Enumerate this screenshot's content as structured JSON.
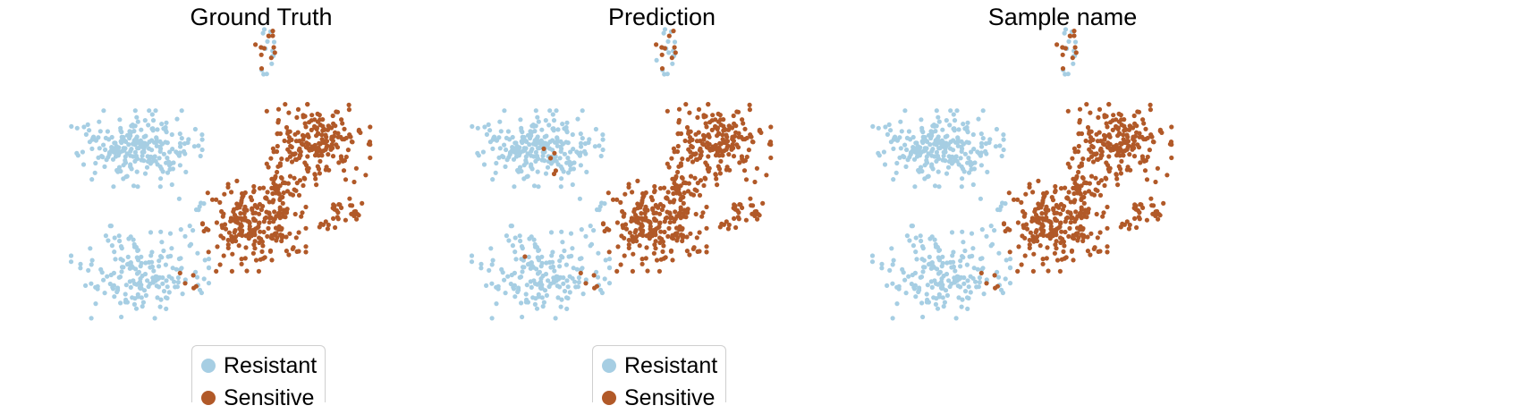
{
  "colors": {
    "Resistant": "#a6cee3",
    "Sensitive": "#b15928"
  },
  "legend": {
    "items": [
      {
        "label": "Resistant",
        "color": "#a6cee3"
      },
      {
        "label": "Sensitive",
        "color": "#b15928"
      }
    ]
  },
  "chart_data": [
    {
      "type": "scatter",
      "title": "Ground Truth",
      "xlabel": "",
      "ylabel": "",
      "axes_visible": false,
      "categories": [
        "Resistant",
        "Sensitive"
      ],
      "legend": {
        "shown": true,
        "placement": "bottom-center"
      },
      "series": [
        {
          "name": "Resistant",
          "color": "#a6cee3",
          "regions": [
            {
              "label": "upper-left cluster",
              "cx": -6.4,
              "cy": 5.2,
              "sx": 1.9,
              "sy": 1.4,
              "n": 240
            },
            {
              "label": "lower-left cluster",
              "cx": -6.2,
              "cy": -4.8,
              "sx": 2.0,
              "sy": 1.7,
              "n": 190
            },
            {
              "label": "top-small cluster",
              "cx": 1.9,
              "cy": 13.1,
              "sx": 0.45,
              "sy": 0.85,
              "n": 14
            },
            {
              "label": "bridge",
              "cx": -2.6,
              "cy": 0.8,
              "sx": 0.5,
              "sy": 0.25,
              "n": 6
            }
          ]
        },
        {
          "name": "Sensitive",
          "color": "#b15928",
          "regions": [
            {
              "label": "upper-right blob",
              "cx": 5.2,
              "cy": 5.5,
              "sx": 1.5,
              "sy": 1.5,
              "n": 200
            },
            {
              "label": "central blob",
              "cx": 1.1,
              "cy": -1.0,
              "sx": 1.5,
              "sy": 1.7,
              "n": 230
            },
            {
              "label": "diagonal link",
              "cx": 3.1,
              "cy": 2.3,
              "sx": 0.6,
              "sy": 1.2,
              "n": 40
            },
            {
              "label": "right satellite",
              "cx": 6.9,
              "cy": 0.2,
              "sx": 0.6,
              "sy": 0.5,
              "n": 25
            },
            {
              "label": "right small",
              "cx": 5.6,
              "cy": -1.0,
              "sx": 0.3,
              "sy": 0.25,
              "n": 7
            },
            {
              "label": "top-small cluster",
              "cx": 1.9,
              "cy": 13.1,
              "sx": 0.5,
              "sy": 0.9,
              "n": 12
            },
            {
              "label": "stray lower",
              "cx": -2.6,
              "cy": -5.5,
              "sx": 0.5,
              "sy": 0.5,
              "n": 5
            }
          ]
        }
      ]
    },
    {
      "type": "scatter",
      "title": "Prediction",
      "xlabel": "",
      "ylabel": "",
      "axes_visible": false,
      "categories": [
        "Resistant",
        "Sensitive"
      ],
      "legend": {
        "shown": true,
        "placement": "bottom-center"
      },
      "series": [
        {
          "name": "Resistant",
          "color": "#a6cee3",
          "regions": [
            {
              "label": "upper-left cluster",
              "cx": -6.4,
              "cy": 5.2,
              "sx": 1.9,
              "sy": 1.4,
              "n": 240
            },
            {
              "label": "lower-left cluster",
              "cx": -6.2,
              "cy": -4.8,
              "sx": 2.0,
              "sy": 1.7,
              "n": 190
            },
            {
              "label": "top-small cluster",
              "cx": 1.9,
              "cy": 13.1,
              "sx": 0.45,
              "sy": 0.85,
              "n": 16
            },
            {
              "label": "bridge",
              "cx": -2.6,
              "cy": 0.8,
              "sx": 0.5,
              "sy": 0.25,
              "n": 6
            }
          ]
        },
        {
          "name": "Sensitive",
          "color": "#b15928",
          "regions": [
            {
              "label": "upper-right blob",
              "cx": 5.2,
              "cy": 5.5,
              "sx": 1.5,
              "sy": 1.5,
              "n": 200
            },
            {
              "label": "central blob",
              "cx": 1.1,
              "cy": -1.0,
              "sx": 1.5,
              "sy": 1.7,
              "n": 230
            },
            {
              "label": "diagonal link",
              "cx": 3.1,
              "cy": 2.3,
              "sx": 0.6,
              "sy": 1.2,
              "n": 40
            },
            {
              "label": "right satellite",
              "cx": 6.9,
              "cy": 0.2,
              "sx": 0.6,
              "sy": 0.5,
              "n": 25
            },
            {
              "label": "right small",
              "cx": 5.6,
              "cy": -1.0,
              "sx": 0.3,
              "sy": 0.25,
              "n": 7
            },
            {
              "label": "top-small cluster",
              "cx": 1.9,
              "cy": 13.1,
              "sx": 0.5,
              "sy": 0.9,
              "n": 10
            },
            {
              "label": "stray lower",
              "cx": -2.6,
              "cy": -5.5,
              "sx": 0.5,
              "sy": 0.5,
              "n": 5
            },
            {
              "label": "misclassified upper-left",
              "cx": -5.6,
              "cy": 4.0,
              "sx": 0.5,
              "sy": 0.6,
              "n": 5
            },
            {
              "label": "misclassified lower-left",
              "cx": -7.0,
              "cy": -3.8,
              "sx": 0.2,
              "sy": 0.2,
              "n": 1
            }
          ]
        }
      ]
    },
    {
      "type": "scatter",
      "title": "Sample name",
      "xlabel": "",
      "ylabel": "",
      "axes_visible": false,
      "categories": [
        "Resistant",
        "Sensitive"
      ],
      "legend": {
        "shown": false
      },
      "series": [
        {
          "name": "Resistant",
          "color": "#a6cee3",
          "regions": [
            {
              "label": "upper-left cluster",
              "cx": -6.4,
              "cy": 5.2,
              "sx": 1.9,
              "sy": 1.4,
              "n": 240
            },
            {
              "label": "lower-left cluster",
              "cx": -6.2,
              "cy": -4.8,
              "sx": 2.0,
              "sy": 1.7,
              "n": 190
            },
            {
              "label": "top-small cluster",
              "cx": 1.9,
              "cy": 13.1,
              "sx": 0.45,
              "sy": 0.85,
              "n": 14
            },
            {
              "label": "bridge",
              "cx": -2.6,
              "cy": 0.8,
              "sx": 0.5,
              "sy": 0.25,
              "n": 6
            }
          ]
        },
        {
          "name": "Sensitive",
          "color": "#b15928",
          "regions": [
            {
              "label": "upper-right blob",
              "cx": 5.2,
              "cy": 5.5,
              "sx": 1.5,
              "sy": 1.5,
              "n": 200
            },
            {
              "label": "central blob",
              "cx": 1.1,
              "cy": -1.0,
              "sx": 1.5,
              "sy": 1.7,
              "n": 230
            },
            {
              "label": "diagonal link",
              "cx": 3.1,
              "cy": 2.3,
              "sx": 0.6,
              "sy": 1.2,
              "n": 40
            },
            {
              "label": "right satellite",
              "cx": 6.9,
              "cy": 0.2,
              "sx": 0.6,
              "sy": 0.5,
              "n": 25
            },
            {
              "label": "right small",
              "cx": 5.6,
              "cy": -1.0,
              "sx": 0.3,
              "sy": 0.25,
              "n": 7
            },
            {
              "label": "top-small cluster",
              "cx": 1.9,
              "cy": 13.1,
              "sx": 0.5,
              "sy": 0.9,
              "n": 12
            },
            {
              "label": "stray lower",
              "cx": -2.6,
              "cy": -5.5,
              "sx": 0.5,
              "sy": 0.5,
              "n": 5
            }
          ]
        }
      ]
    }
  ]
}
